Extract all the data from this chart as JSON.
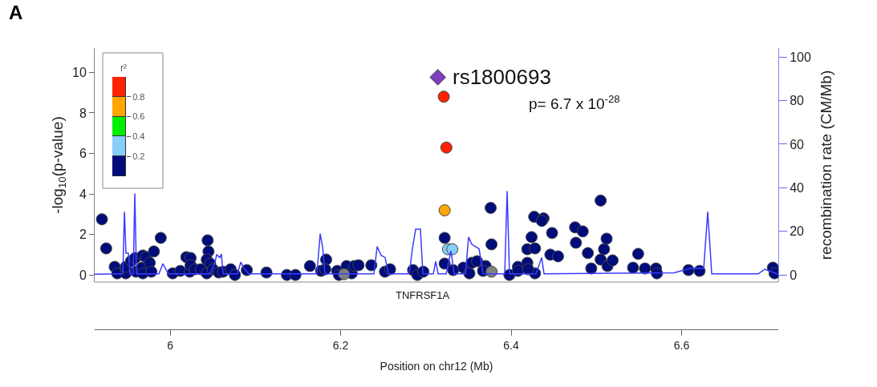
{
  "chart_data": [
    {
      "type": "scatter",
      "title": "A",
      "xlabel": "Position on chr12 (Mb)",
      "ylabel": "-log$_{10}$(p-value)",
      "y2label": "recombination rate (CM/Mb)",
      "xlim": [
        5.9115,
        6.7134
      ],
      "xticks": [
        6,
        6.2,
        6.4,
        6.6
      ],
      "ylim": [
        -0.35,
        11.2
      ],
      "yticks": [
        0,
        2,
        4,
        6,
        8,
        10
      ],
      "y2lim": [
        -3.25,
        104.1
      ],
      "y2ticks": [
        0,
        20,
        40,
        60,
        80,
        100
      ],
      "annotations": [
        {
          "text": "rs1800693",
          "x": 6.314,
          "y": 9.76
        },
        "p= 6.7 x 10$^{-28}$",
        "TNFRSF1A"
      ],
      "series": [
        {
          "type": "line",
          "axis": "y2",
          "color": "#3b3bff",
          "marker": "none",
          "x": [
            5.9115,
            5.9416,
            5.9445,
            5.9464,
            5.9482,
            5.9511,
            5.9529,
            5.9567,
            5.9586,
            5.9605,
            5.9868,
            5.9915,
            5.9944,
            5.9981,
            6.0471,
            6.0527,
            6.0546,
            6.0584,
            6.0602,
            6.0621,
            6.0791,
            6.0828,
            6.0866,
            6.0922,
            6.1722,
            6.176,
            6.1788,
            6.1816,
            6.2391,
            6.2428,
            6.2475,
            6.2522,
            6.256,
            6.2805,
            6.2842,
            6.288,
            6.2936,
            6.2965,
            6.3087,
            6.3115,
            6.3144,
            6.3238,
            6.3294,
            6.3332,
            6.3464,
            6.3501,
            6.3539,
            6.3624,
            6.3671,
            6.3925,
            6.3953,
            6.3981,
            6.4292,
            6.4358,
            6.4386,
            6.5911,
            6.6099,
            6.6259,
            6.6306,
            6.6353,
            6.6899,
            6.6974,
            6.7134
          ],
          "values": [
            0.3,
            0.5,
            0.5,
            29,
            10,
            10,
            0.5,
            0.5,
            37.4,
            0.5,
            0.5,
            5.2,
            3,
            0.5,
            0.5,
            6,
            9.3,
            8,
            9.6,
            0.5,
            0.5,
            5.9,
            3,
            0.5,
            0.5,
            18.9,
            13,
            0.5,
            0.5,
            13,
            9,
            8,
            0.5,
            0.5,
            12,
            21,
            21,
            0.5,
            0.5,
            6.3,
            0.5,
            0.5,
            11,
            0.5,
            0.5,
            17.4,
            14,
            12,
            0.5,
            0.5,
            38.5,
            0.5,
            0.5,
            8,
            0.5,
            1,
            3,
            3,
            29,
            0.5,
            0.5,
            2.6,
            0.3
          ]
        },
        {
          "marker": "circle",
          "color": "#000c7a",
          "x": [
            5.92,
            5.925,
            5.935,
            5.938,
            5.948,
            5.948,
            5.954,
            5.959,
            5.96,
            5.968,
            5.972,
            5.967,
            5.968,
            5.976,
            5.981,
            5.978,
            5.989,
            6.003,
            6.012,
            6.019,
            6.024,
            6.023,
            6.024,
            6.029,
            6.036,
            6.044,
            6.045,
            6.043,
            6.047,
            6.043,
            6.05,
            6.057,
            6.062,
            6.071,
            6.076,
            6.09,
            6.113,
            6.137,
            6.147,
            6.164,
            6.177,
            6.183,
            6.182,
            6.196,
            6.198,
            6.207,
            6.213,
            6.216,
            6.221,
            6.236,
            6.252,
            6.258,
            6.285,
            6.29,
            6.297,
            6.322,
            6.322,
            6.332,
            6.344,
            6.351,
            6.354,
            6.36,
            6.37,
            6.367,
            6.376,
            6.377,
            6.398,
            6.408,
            6.408,
            6.419,
            6.419,
            6.428,
            6.424,
            6.427,
            6.438,
            6.436,
            6.448,
            6.428,
            6.446,
            6.455,
            6.42,
            6.475,
            6.484,
            6.476,
            6.49,
            6.494,
            6.505,
            6.512,
            6.509,
            6.505,
            6.513,
            6.519,
            6.543,
            6.549,
            6.557,
            6.57,
            6.571,
            6.608,
            6.621,
            6.707,
            6.709
          ],
          "values": [
            2.75,
            1.31,
            0.4,
            0.08,
            0.08,
            0.4,
            0.68,
            0.84,
            0.16,
            0.96,
            0.88,
            0.36,
            0.08,
            0.6,
            1.16,
            0.16,
            1.83,
            0.08,
            0.2,
            0.88,
            0.84,
            0.16,
            0.48,
            0.28,
            0.28,
            1.71,
            1.16,
            0.76,
            0.56,
            0.08,
            0.28,
            0.12,
            0.16,
            0.28,
            0.0,
            0.24,
            0.12,
            0.0,
            0.0,
            0.44,
            0.2,
            0.76,
            0.28,
            0.2,
            0.0,
            0.44,
            0.08,
            0.44,
            0.48,
            0.48,
            0.16,
            0.28,
            0.24,
            0.0,
            0.16,
            1.83,
            0.56,
            0.24,
            0.36,
            0.08,
            0.6,
            0.68,
            0.44,
            0.2,
            3.31,
            1.51,
            0.0,
            0.4,
            0.2,
            0.6,
            1.27,
            1.31,
            1.87,
            2.87,
            2.79,
            2.67,
            2.07,
            0.08,
            1.0,
            0.92,
            0.28,
            2.35,
            2.15,
            1.59,
            1.08,
            0.32,
            3.67,
            1.79,
            1.27,
            0.76,
            0.44,
            0.72,
            0.36,
            1.04,
            0.32,
            0.32,
            0.08,
            0.24,
            0.2,
            0.36,
            0.08
          ]
        },
        {
          "marker": "circle",
          "color": "#87cefa",
          "x": [
            6.326,
            6.331
          ],
          "values": [
            1.27,
            1.27
          ]
        },
        {
          "marker": "circle",
          "color": "#ffa500",
          "x": [
            6.322
          ],
          "values": [
            3.19
          ]
        },
        {
          "marker": "circle",
          "color": "#ff2200",
          "x": [
            6.321,
            6.324
          ],
          "values": [
            8.8,
            6.29
          ]
        },
        {
          "marker": "circle",
          "color": "#808080",
          "x": [
            6.204,
            6.377
          ],
          "values": [
            0.04,
            0.16
          ]
        },
        {
          "marker": "diamond",
          "color": "#7b3fbf",
          "x": [
            6.314
          ],
          "values": [
            9.76
          ]
        }
      ]
    },
    {
      "type": "bar",
      "title": "r²",
      "stacked": true,
      "categories": [
        null
      ],
      "ylim": [
        0,
        1
      ],
      "yticks": [
        0.2,
        0.4,
        0.6,
        0.8
      ],
      "series": [
        {
          "color": "#000c7a",
          "values": [
            0.2
          ]
        },
        {
          "color": "#87cefa",
          "values": [
            0.2
          ]
        },
        {
          "color": "#00ee00",
          "values": [
            0.2
          ]
        },
        {
          "color": "#ffa500",
          "values": [
            0.2
          ]
        },
        {
          "color": "#ff2200",
          "values": [
            0.2
          ]
        }
      ]
    }
  ]
}
